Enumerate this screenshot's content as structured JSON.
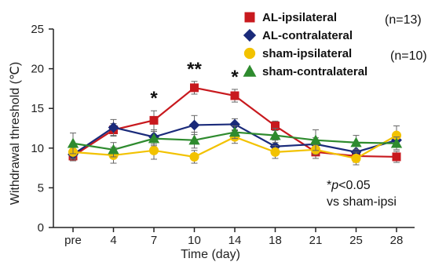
{
  "chart_data": {
    "type": "line",
    "title": "",
    "xlabel": "Time  (day)",
    "ylabel": "Withdrawal threshold  (℃)",
    "categories": [
      "pre",
      "4",
      "7",
      "10",
      "14",
      "18",
      "21",
      "25",
      "28"
    ],
    "ylim": [
      0,
      25
    ],
    "yticks": [
      0,
      5,
      10,
      15,
      20,
      25
    ],
    "grid": false,
    "legend_placement": "top-right",
    "series": [
      {
        "name": "AL-ipsilateral",
        "color": "#c8191e",
        "marker": "square",
        "values": [
          9.0,
          12.3,
          13.5,
          17.6,
          16.6,
          12.8,
          9.5,
          9.0,
          8.9
        ],
        "errors": [
          0.6,
          0.8,
          1.2,
          0.8,
          0.8,
          0.6,
          0.8,
          0.8,
          0.7
        ]
      },
      {
        "name": "AL-contralateral",
        "color": "#1a2a7a",
        "marker": "diamond",
        "values": [
          9.2,
          12.6,
          11.4,
          12.9,
          13.0,
          10.2,
          10.5,
          9.5,
          11.0
        ],
        "errors": [
          0.6,
          1.0,
          0.9,
          1.2,
          0.7,
          0.8,
          0.8,
          0.9,
          0.8
        ]
      },
      {
        "name": "sham-ipsilateral",
        "color": "#f2c200",
        "marker": "circle",
        "values": [
          9.5,
          9.1,
          9.7,
          8.9,
          11.4,
          9.5,
          9.8,
          8.7,
          11.6
        ],
        "errors": [
          0.8,
          1.0,
          1.1,
          0.8,
          0.8,
          0.8,
          0.6,
          0.8,
          1.2
        ]
      },
      {
        "name": "sham-contralateral",
        "color": "#2e8b2e",
        "marker": "triangle",
        "values": [
          10.6,
          9.8,
          11.2,
          11.0,
          12.0,
          11.6,
          11.0,
          10.7,
          10.6
        ],
        "errors": [
          1.3,
          0.9,
          0.9,
          1.0,
          0.8,
          0.9,
          1.3,
          0.9,
          0.8
        ]
      }
    ],
    "legend_counts": [
      {
        "series": "AL-ipsilateral",
        "text": "(n=13)"
      },
      {
        "series": "sham-ipsilateral",
        "text": "(n=10)"
      }
    ],
    "significance": [
      {
        "category": "7",
        "label": "*"
      },
      {
        "category": "10",
        "label": "**"
      },
      {
        "category": "14",
        "label": "*"
      }
    ],
    "annotation": {
      "line1_prefix": "*",
      "line1_italic": "p",
      "line1_suffix": "<0.05",
      "line2": "vs sham-ipsi"
    }
  }
}
